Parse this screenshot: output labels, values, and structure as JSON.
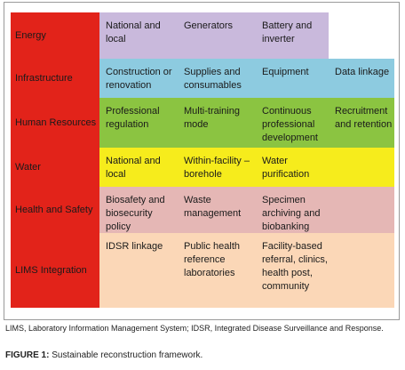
{
  "rows": [
    {
      "label": "Energy",
      "cells": [
        "National and local",
        "Generators",
        "Battery and inverter",
        ""
      ],
      "color": "#c9b9dc"
    },
    {
      "label": "Infrastructure",
      "cells": [
        "Construction or renovation",
        "Supplies and consumables",
        "Equipment",
        "Data linkage"
      ],
      "color": "#8dcbe0"
    },
    {
      "label": "Human Resources",
      "cells": [
        "Professional regulation",
        "Multi-training mode",
        "Continuous professional development",
        "Recruitment and retention"
      ],
      "color": "#8bc441"
    },
    {
      "label": "Water",
      "cells": [
        "National and local",
        "Within-facility – borehole",
        "Water purification",
        ""
      ],
      "color": "#f6ec1c"
    },
    {
      "label": "Health and Safety",
      "cells": [
        "Biosafety and biosecurity policy",
        "Waste management",
        "Specimen archiving and biobanking",
        ""
      ],
      "color": "#e5b7b5"
    },
    {
      "label": "LIMS Integration",
      "cells": [
        "IDSR linkage",
        "Public health reference laboratories",
        "Facility-based referral, clinics, health post, community",
        ""
      ],
      "color": "#fbd7b7"
    }
  ],
  "accent_color": "#e2231a",
  "caption": "LIMS, Laboratory Information Management System; IDSR, Integrated Disease Surveillance and Response.",
  "figure": {
    "label": "FIGURE 1:",
    "title": "Sustainable reconstruction framework."
  }
}
